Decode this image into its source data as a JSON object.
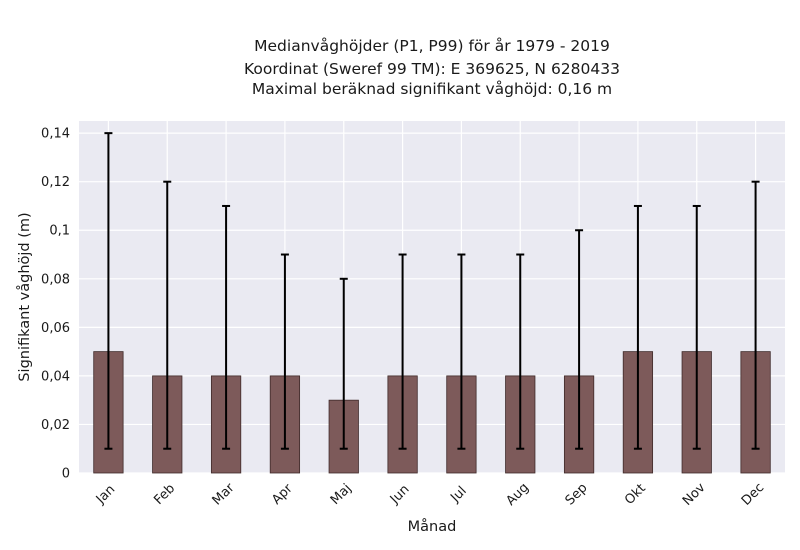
{
  "chart_data": {
    "type": "bar",
    "title_lines": [
      "Medianvåghöjder (P1, P99) för år 1979 - 2019",
      "Koordinat (Sweref 99 TM): E 369625, N 6280433",
      "Maximal beräknad signifikant våghöjd: 0,16 m"
    ],
    "xlabel": "Månad",
    "ylabel": "Signifikant våghöjd (m)",
    "categories": [
      "Jan",
      "Feb",
      "Mar",
      "Apr",
      "Maj",
      "Jun",
      "Jul",
      "Aug",
      "Sep",
      "Okt",
      "Nov",
      "Dec"
    ],
    "values": [
      0.05,
      0.04,
      0.04,
      0.04,
      0.03,
      0.04,
      0.04,
      0.04,
      0.04,
      0.05,
      0.05,
      0.05
    ],
    "p1": [
      0.01,
      0.01,
      0.01,
      0.01,
      0.01,
      0.01,
      0.01,
      0.01,
      0.01,
      0.01,
      0.01,
      0.01
    ],
    "p99": [
      0.14,
      0.12,
      0.11,
      0.09,
      0.08,
      0.09,
      0.09,
      0.09,
      0.1,
      0.11,
      0.11,
      0.12
    ],
    "ylim": [
      0,
      0.145
    ],
    "yticks": [
      0,
      0.02,
      0.04,
      0.06,
      0.08,
      0.1,
      0.12,
      0.14
    ],
    "ytick_labels": [
      "0",
      "0,02",
      "0,04",
      "0,06",
      "0,08",
      "0,1",
      "0,12",
      "0,14"
    ],
    "grid": true,
    "colors": {
      "bar": "#7d5a5a",
      "bar_edge": "#3f2a2a",
      "errorbar": "#000000",
      "plot_background": "#eaeaf2",
      "grid": "#ffffff"
    }
  }
}
